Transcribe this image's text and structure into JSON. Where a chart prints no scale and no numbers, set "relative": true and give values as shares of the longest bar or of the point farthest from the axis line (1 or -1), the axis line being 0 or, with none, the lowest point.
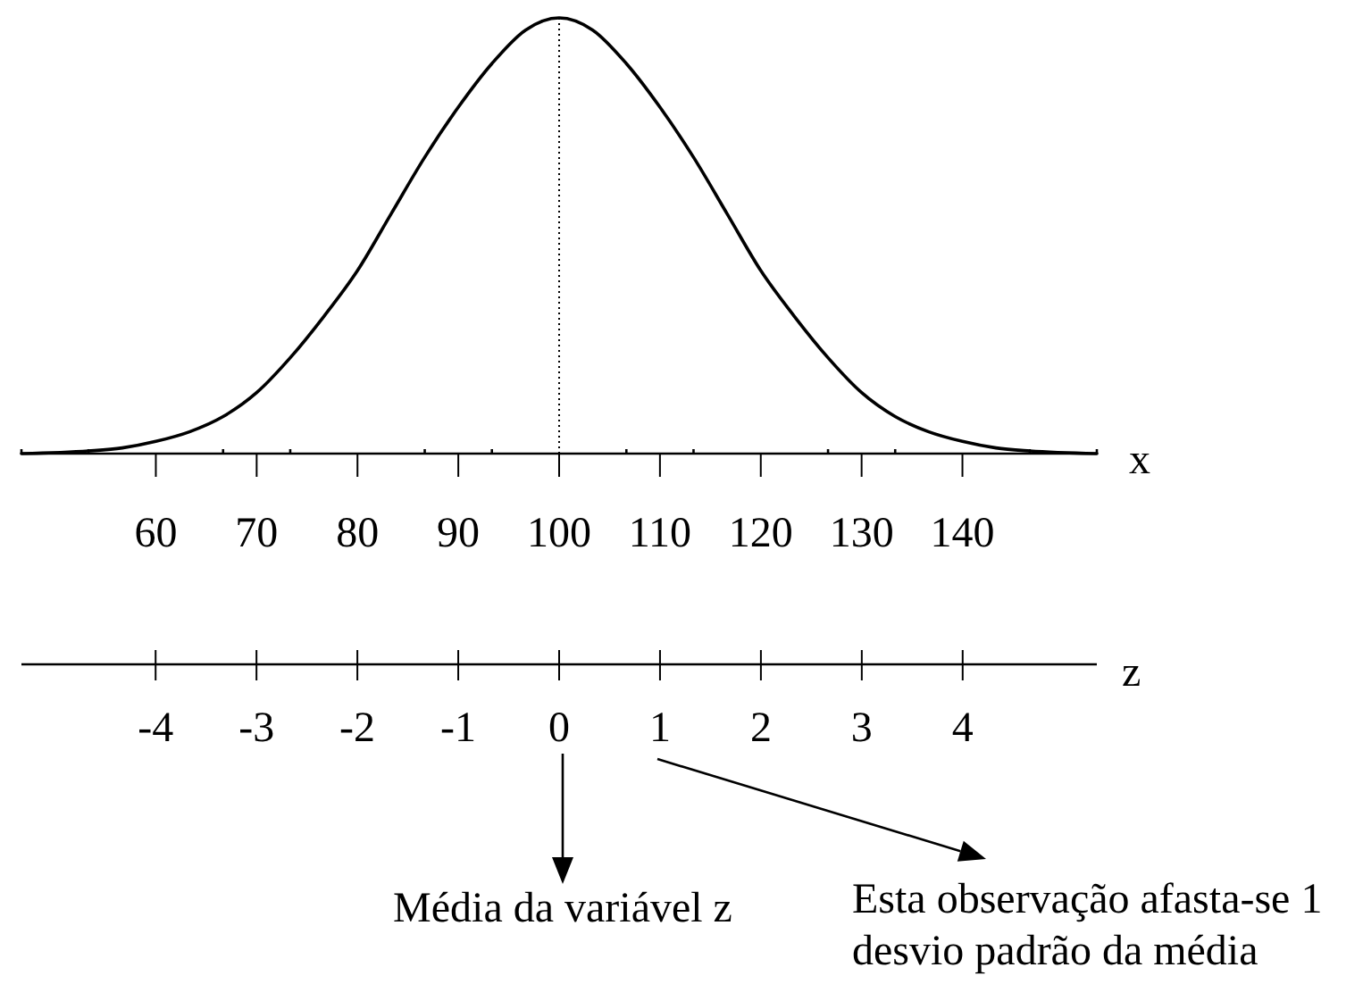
{
  "chart_data": {
    "type": "line",
    "xlabel": "x",
    "x2label": "z",
    "relative": true,
    "x": [
      46.67,
      53.33,
      56.67,
      60,
      63.33,
      66.67,
      70,
      73.33,
      76.67,
      80,
      83.33,
      86.67,
      90,
      93.33,
      96.67,
      100,
      103.33,
      106.67,
      110,
      113.33,
      116.67,
      120,
      123.33,
      126.67,
      130,
      133.33,
      136.67,
      140,
      143.33,
      146.67,
      153.33
    ],
    "series": [
      {
        "color": "#000000",
        "values": [
          0,
          0.006,
          0.013,
          0.028,
          0.05,
          0.085,
          0.14,
          0.22,
          0.315,
          0.42,
          0.55,
          0.68,
          0.795,
          0.895,
          0.972,
          1,
          0.972,
          0.895,
          0.795,
          0.68,
          0.55,
          0.42,
          0.315,
          0.22,
          0.14,
          0.085,
          0.05,
          0.028,
          0.013,
          0.006,
          0
        ]
      }
    ],
    "xlim": [
      46.67,
      153.33
    ],
    "xticks": [
      {
        "value": 46.67,
        "label": null
      },
      {
        "value": 53.33,
        "label": null
      },
      60,
      {
        "value": 66.67,
        "label": null
      },
      70,
      {
        "value": 73.33,
        "label": null
      },
      80,
      {
        "value": 86.67,
        "label": null
      },
      90,
      {
        "value": 93.33,
        "label": null
      },
      100,
      {
        "value": 106.67,
        "label": null
      },
      110,
      {
        "value": 113.33,
        "label": null
      },
      120,
      {
        "value": 126.67,
        "label": null
      },
      130,
      {
        "value": 133.33,
        "label": null
      },
      140,
      {
        "value": 146.67,
        "label": null
      },
      {
        "value": 153.33,
        "label": null
      }
    ],
    "x2lim": [
      -5.33,
      5.33
    ],
    "x2ticks": [
      -4,
      -3,
      -2,
      -1,
      0,
      1,
      2,
      3,
      4
    ],
    "ref_lines": [
      {
        "axis": "x",
        "value": 100,
        "line_style": "dotted"
      }
    ],
    "annotations": [
      "Média da variável z",
      "Esta observação afasta-se 1 desvio padrão da média"
    ]
  }
}
